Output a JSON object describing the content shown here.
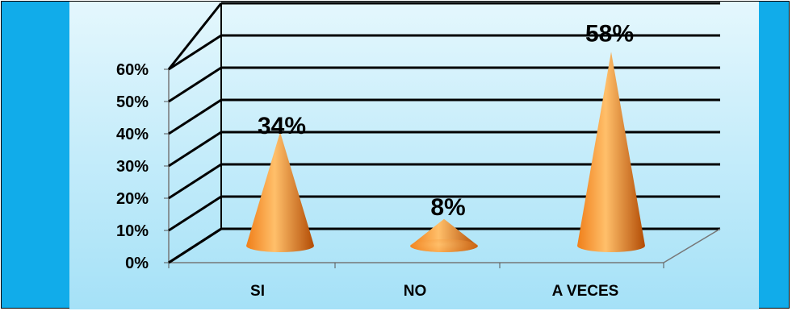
{
  "colors": {
    "frame_background": "#11acea",
    "plot_background_top": "#e4f7fd",
    "plot_background_bottom": "#a5e1f7",
    "cone_light": "#ffbf6a",
    "cone_mid": "#f07f1a",
    "cone_dark": "#b24c05",
    "gridline": "#000000"
  },
  "chart_data": {
    "type": "bar",
    "style": "3d-cone",
    "categories": [
      "SI",
      "NO",
      "A VECES"
    ],
    "values": [
      34,
      8,
      58
    ],
    "value_labels": [
      "34%",
      "8%",
      "58%"
    ],
    "y_ticks": [
      0,
      10,
      20,
      30,
      40,
      50,
      60
    ],
    "y_tick_labels": [
      "0%",
      "10%",
      "20%",
      "30%",
      "40%",
      "50%",
      "60%"
    ],
    "ylim": [
      0,
      60
    ],
    "grid": true,
    "legend": "none",
    "title": "",
    "xlabel": "",
    "ylabel": ""
  }
}
